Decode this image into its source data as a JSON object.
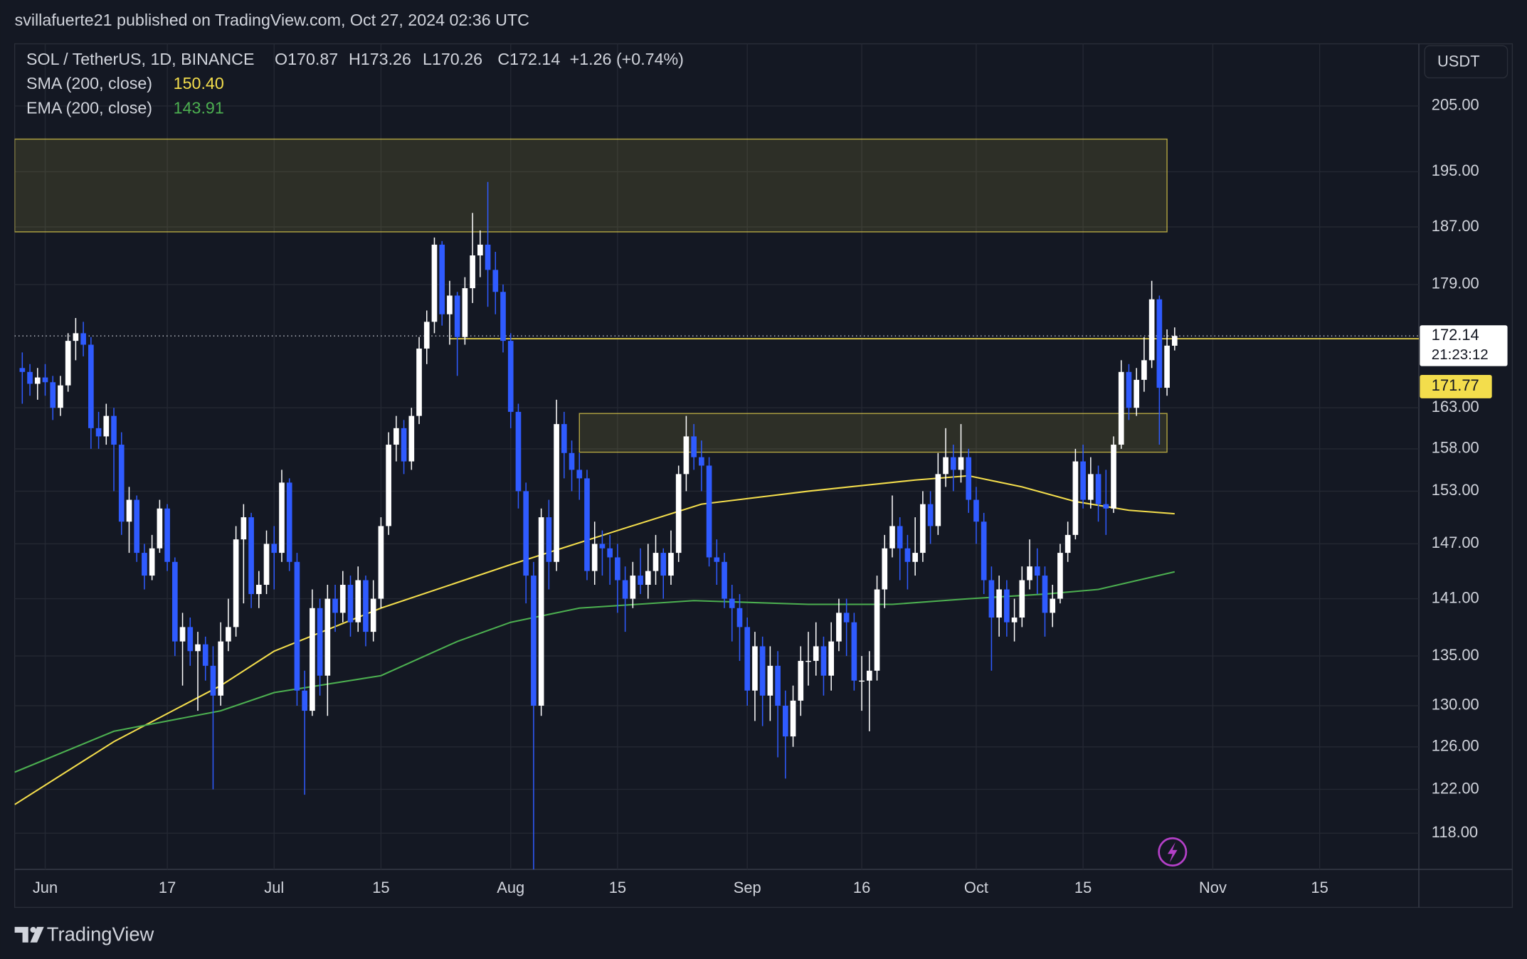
{
  "header": "svillafuerte21 published on TradingView.com, Oct 27, 2024 02:36 UTC",
  "footer": "TradingView",
  "chart_data": {
    "type": "candlestick",
    "symbol": "SOL / TetherUS, 1D, BINANCE",
    "ohlc_legend": [
      "O170.87",
      "H173.26",
      "L170.26",
      "C172.14",
      "+1.26 (+0.74%)"
    ],
    "currency": "USDT",
    "x": [
      "2024-05-29",
      "2024-05-30",
      "2024-05-31",
      "2024-06-01",
      "2024-06-02",
      "2024-06-03",
      "2024-06-04",
      "2024-06-05",
      "2024-06-06",
      "2024-06-07",
      "2024-06-08",
      "2024-06-09",
      "2024-06-10",
      "2024-06-11",
      "2024-06-12",
      "2024-06-13",
      "2024-06-14",
      "2024-06-15",
      "2024-06-16",
      "2024-06-17",
      "2024-06-18",
      "2024-06-19",
      "2024-06-20",
      "2024-06-21",
      "2024-06-22",
      "2024-06-23",
      "2024-06-24",
      "2024-06-25",
      "2024-06-26",
      "2024-06-27",
      "2024-06-28",
      "2024-06-29",
      "2024-06-30",
      "2024-07-01",
      "2024-07-02",
      "2024-07-03",
      "2024-07-04",
      "2024-07-05",
      "2024-07-06",
      "2024-07-07",
      "2024-07-08",
      "2024-07-09",
      "2024-07-10",
      "2024-07-11",
      "2024-07-12",
      "2024-07-13",
      "2024-07-14",
      "2024-07-15",
      "2024-07-16",
      "2024-07-17",
      "2024-07-18",
      "2024-07-19",
      "2024-07-20",
      "2024-07-21",
      "2024-07-22",
      "2024-07-23",
      "2024-07-24",
      "2024-07-25",
      "2024-07-26",
      "2024-07-27",
      "2024-07-28",
      "2024-07-29",
      "2024-07-30",
      "2024-07-31",
      "2024-08-01",
      "2024-08-02",
      "2024-08-03",
      "2024-08-04",
      "2024-08-05",
      "2024-08-06",
      "2024-08-07",
      "2024-08-08",
      "2024-08-09",
      "2024-08-10",
      "2024-08-11",
      "2024-08-12",
      "2024-08-13",
      "2024-08-14",
      "2024-08-15",
      "2024-08-16",
      "2024-08-17",
      "2024-08-18",
      "2024-08-19",
      "2024-08-20",
      "2024-08-21",
      "2024-08-22",
      "2024-08-23",
      "2024-08-24",
      "2024-08-25",
      "2024-08-26",
      "2024-08-27",
      "2024-08-28",
      "2024-08-29",
      "2024-08-30",
      "2024-08-31",
      "2024-09-01",
      "2024-09-02",
      "2024-09-03",
      "2024-09-04",
      "2024-09-05",
      "2024-09-06",
      "2024-09-07",
      "2024-09-08",
      "2024-09-09",
      "2024-09-10",
      "2024-09-11",
      "2024-09-12",
      "2024-09-13",
      "2024-09-14",
      "2024-09-15",
      "2024-09-16",
      "2024-09-17",
      "2024-09-18",
      "2024-09-19",
      "2024-09-20",
      "2024-09-21",
      "2024-09-22",
      "2024-09-23",
      "2024-09-24",
      "2024-09-25",
      "2024-09-26",
      "2024-09-27",
      "2024-09-28",
      "2024-09-29",
      "2024-09-30",
      "2024-10-01",
      "2024-10-02",
      "2024-10-03",
      "2024-10-04",
      "2024-10-05",
      "2024-10-06",
      "2024-10-07",
      "2024-10-08",
      "2024-10-09",
      "2024-10-10",
      "2024-10-11",
      "2024-10-12",
      "2024-10-13",
      "2024-10-14",
      "2024-10-15",
      "2024-10-16",
      "2024-10-17",
      "2024-10-18",
      "2024-10-19",
      "2024-10-20",
      "2024-10-21",
      "2024-10-22",
      "2024-10-23",
      "2024-10-24",
      "2024-10-25",
      "2024-10-26",
      "2024-10-27"
    ],
    "open": [
      168.0,
      167.5,
      166.0,
      166.8,
      166.2,
      163.0,
      165.8,
      171.5,
      172.5,
      171.0,
      160.5,
      159.5,
      162.0,
      158.5,
      149.5,
      152.0,
      146.0,
      143.5,
      146.5,
      151.0,
      145.0,
      136.5,
      138.0,
      135.5,
      136.2,
      134.0,
      131.0,
      136.5,
      138.0,
      147.5,
      150.0,
      141.5,
      142.5,
      147.0,
      146.0,
      154.0,
      145.0,
      131.5,
      129.5,
      140.0,
      133.0,
      141.0,
      139.5,
      142.5,
      138.5,
      143.0,
      137.5,
      141.0,
      149.0,
      158.5,
      160.5,
      156.5,
      162.0,
      170.5,
      174.0,
      184.5,
      175.0,
      177.5,
      172.0,
      178.5,
      183.0,
      184.5,
      181.0,
      178.0,
      171.5,
      162.5,
      153.0,
      143.5,
      130.0,
      150.0,
      145.0,
      161.0,
      157.5,
      155.5,
      154.5,
      144.0,
      147.0,
      146.5,
      145.5,
      143.0,
      141.0,
      143.5,
      142.5,
      144.0,
      146.0,
      143.5,
      146.0,
      155.0,
      159.5,
      157.0,
      156.0,
      145.5,
      145.0,
      141.0,
      140.0,
      138.0,
      131.5,
      136.0,
      131.0,
      134.0,
      130.0,
      127.0,
      130.5,
      134.5,
      134.5,
      136.0,
      133.0,
      136.5,
      139.5,
      138.5,
      132.5,
      132.5,
      133.5,
      142.0,
      146.5,
      149.0,
      146.5,
      145.0,
      146.0,
      151.5,
      149.0,
      155.0,
      157.0,
      155.5,
      157.0,
      152.0,
      149.5,
      143.0,
      139.0,
      142.0,
      138.5,
      139.0,
      143.0,
      144.5,
      143.5,
      139.5,
      141.0,
      146.0,
      148.0,
      156.5,
      152.0,
      155.0,
      151.5,
      151.0,
      158.5,
      167.5,
      163.0,
      166.5,
      169.0,
      177.0,
      165.5,
      170.87
    ],
    "high": [
      170.0,
      168.5,
      168.0,
      168.5,
      167.0,
      167.0,
      172.5,
      174.5,
      174.0,
      172.0,
      162.5,
      163.5,
      163.0,
      160.0,
      153.5,
      152.5,
      147.0,
      148.0,
      152.0,
      151.5,
      145.5,
      139.5,
      139.0,
      137.5,
      137.0,
      136.0,
      138.5,
      141.0,
      149.0,
      151.5,
      150.5,
      144.0,
      148.5,
      149.0,
      155.5,
      154.5,
      146.0,
      133.5,
      142.0,
      141.0,
      142.5,
      142.5,
      144.0,
      143.5,
      144.5,
      143.5,
      143.0,
      150.0,
      160.0,
      162.0,
      161.5,
      163.0,
      172.0,
      175.5,
      185.5,
      185.0,
      179.5,
      178.0,
      180.0,
      189.0,
      186.5,
      193.5,
      183.5,
      179.0,
      172.5,
      163.5,
      154.0,
      145.0,
      151.0,
      152.0,
      164.0,
      162.5,
      159.0,
      157.5,
      155.5,
      149.5,
      148.5,
      148.0,
      147.0,
      144.5,
      145.0,
      146.5,
      147.0,
      148.0,
      146.5,
      148.5,
      156.0,
      162.0,
      161.0,
      159.0,
      157.0,
      147.5,
      146.0,
      142.5,
      141.5,
      139.0,
      137.5,
      137.0,
      136.0,
      135.5,
      131.5,
      132.0,
      136.0,
      137.5,
      138.5,
      137.0,
      138.5,
      141.0,
      141.0,
      139.5,
      135.0,
      135.5,
      143.5,
      148.0,
      152.5,
      150.0,
      148.0,
      150.0,
      153.0,
      153.0,
      157.5,
      160.5,
      158.5,
      161.0,
      158.0,
      153.5,
      150.5,
      144.5,
      143.5,
      143.0,
      141.0,
      144.5,
      147.5,
      146.5,
      144.5,
      142.5,
      147.0,
      149.5,
      158.0,
      158.5,
      157.0,
      156.0,
      155.5,
      159.5,
      169.0,
      168.5,
      168.0,
      172.0,
      179.5,
      177.5,
      173.0,
      173.26
    ],
    "low": [
      163.5,
      164.5,
      164.0,
      164.5,
      161.5,
      162.0,
      165.0,
      169.0,
      169.5,
      158.0,
      158.0,
      158.5,
      153.0,
      148.0,
      146.0,
      145.0,
      142.0,
      143.0,
      146.0,
      144.0,
      135.0,
      132.0,
      134.0,
      129.5,
      132.5,
      122.0,
      130.0,
      135.5,
      137.0,
      140.5,
      140.0,
      140.0,
      141.5,
      142.0,
      145.0,
      144.0,
      130.0,
      121.5,
      129.0,
      131.0,
      129.0,
      137.5,
      138.5,
      137.0,
      137.5,
      136.0,
      136.5,
      140.0,
      148.0,
      156.5,
      155.0,
      155.5,
      161.0,
      168.5,
      172.5,
      173.5,
      171.0,
      167.0,
      171.0,
      176.5,
      180.0,
      176.0,
      175.0,
      170.0,
      160.5,
      151.0,
      140.5,
      110.0,
      129.0,
      142.0,
      144.0,
      154.5,
      153.0,
      152.0,
      143.0,
      142.5,
      143.5,
      142.5,
      139.5,
      137.5,
      140.0,
      141.5,
      141.0,
      142.5,
      141.0,
      142.5,
      145.0,
      153.0,
      155.5,
      153.0,
      144.5,
      142.5,
      140.0,
      136.5,
      134.5,
      130.0,
      128.5,
      128.0,
      128.5,
      125.0,
      123.0,
      126.0,
      129.0,
      132.0,
      133.0,
      131.0,
      131.5,
      135.5,
      135.0,
      131.5,
      129.5,
      127.5,
      132.5,
      140.0,
      145.5,
      143.0,
      142.0,
      143.5,
      145.0,
      147.0,
      148.0,
      153.5,
      153.0,
      154.0,
      150.5,
      147.0,
      141.5,
      133.5,
      137.0,
      137.0,
      136.5,
      138.0,
      142.0,
      141.5,
      137.0,
      138.0,
      140.5,
      145.0,
      147.5,
      151.0,
      151.0,
      149.5,
      148.0,
      150.5,
      158.0,
      161.5,
      162.0,
      165.0,
      168.0,
      158.5,
      164.5,
      170.26
    ],
    "close": [
      167.5,
      166.0,
      166.8,
      166.2,
      163.0,
      165.8,
      171.5,
      172.5,
      171.0,
      160.5,
      159.5,
      162.0,
      158.5,
      149.5,
      152.0,
      146.0,
      143.5,
      146.5,
      151.0,
      145.0,
      136.5,
      138.0,
      135.5,
      136.2,
      134.0,
      131.0,
      136.5,
      138.0,
      147.5,
      150.0,
      141.5,
      142.5,
      147.0,
      146.0,
      154.0,
      145.0,
      131.5,
      129.5,
      140.0,
      133.0,
      141.0,
      139.5,
      142.5,
      138.5,
      143.0,
      137.5,
      141.0,
      149.0,
      158.5,
      160.5,
      156.5,
      162.0,
      170.5,
      174.0,
      184.5,
      175.0,
      177.5,
      172.0,
      178.5,
      183.0,
      184.5,
      181.0,
      178.0,
      171.5,
      162.5,
      153.0,
      143.5,
      130.0,
      150.0,
      145.0,
      161.0,
      157.5,
      155.5,
      154.5,
      144.0,
      147.0,
      146.5,
      145.5,
      143.0,
      141.0,
      143.5,
      142.5,
      144.0,
      146.0,
      143.5,
      146.0,
      155.0,
      159.5,
      157.0,
      156.0,
      145.5,
      145.0,
      141.0,
      140.0,
      138.0,
      131.5,
      136.0,
      131.0,
      134.0,
      130.0,
      127.0,
      130.5,
      134.5,
      134.5,
      136.0,
      133.0,
      136.5,
      139.5,
      138.5,
      132.5,
      132.5,
      133.5,
      142.0,
      146.5,
      149.0,
      146.5,
      145.0,
      146.0,
      151.5,
      149.0,
      155.0,
      157.0,
      155.5,
      157.0,
      152.0,
      149.5,
      143.0,
      139.0,
      142.0,
      138.5,
      139.0,
      143.0,
      144.5,
      143.5,
      139.5,
      141.0,
      146.0,
      148.0,
      156.5,
      152.0,
      155.0,
      151.5,
      151.0,
      158.5,
      167.5,
      163.0,
      166.5,
      169.0,
      177.0,
      165.5,
      170.88,
      172.14
    ],
    "up_color": "#ffffff",
    "down_color": "#2f5bff",
    "indicators": [
      {
        "name": "SMA (200, close)",
        "value_label": "150.40",
        "color": "#f3dd4c",
        "x": [
          "2024-05-28",
          "2024-06-10",
          "2024-06-24",
          "2024-07-01",
          "2024-07-15",
          "2024-08-01",
          "2024-08-15",
          "2024-08-26",
          "2024-09-09",
          "2024-09-23",
          "2024-09-30",
          "2024-10-07",
          "2024-10-14",
          "2024-10-21",
          "2024-10-27"
        ],
        "values": [
          120.6,
          126.5,
          132.0,
          135.5,
          140.0,
          144.7,
          148.5,
          151.5,
          153.0,
          154.3,
          154.8,
          153.5,
          151.8,
          150.8,
          150.4
        ]
      },
      {
        "name": "EMA (200, close)",
        "value_label": "143.91",
        "color": "#4caf50",
        "x": [
          "2024-05-28",
          "2024-06-10",
          "2024-06-24",
          "2024-07-01",
          "2024-07-15",
          "2024-07-25",
          "2024-08-01",
          "2024-08-10",
          "2024-08-25",
          "2024-09-09",
          "2024-09-20",
          "2024-09-30",
          "2024-10-10",
          "2024-10-17",
          "2024-10-27"
        ],
        "values": [
          123.6,
          127.5,
          129.5,
          131.3,
          133.0,
          136.5,
          138.5,
          140.0,
          140.8,
          140.4,
          140.4,
          141.0,
          141.5,
          142.0,
          143.91
        ]
      }
    ],
    "zones": [
      {
        "top": 199.9,
        "bottom": 186.3,
        "start": "2024-05-28",
        "end": "2024-10-26",
        "color": "#e8d44d"
      },
      {
        "top": 162.3,
        "bottom": 157.6,
        "start": "2024-08-10",
        "end": "2024-10-26",
        "color": "#e8d44d"
      }
    ],
    "level": {
      "value": 171.77,
      "label": "171.77",
      "start": "2024-07-24",
      "color": "#f3dd4c"
    },
    "last_price": {
      "value": 172.14,
      "label": "172.14",
      "countdown": "21:23:12"
    },
    "xlim": [
      "2024-05-28",
      "2024-11-28"
    ],
    "ylim": [
      114.8,
      214.9
    ],
    "log_scale": true,
    "grid": true,
    "xticks": [
      {
        "value": "2024-06-01",
        "label": "Jun"
      },
      {
        "value": "2024-06-17",
        "label": "17"
      },
      {
        "value": "2024-07-01",
        "label": "Jul"
      },
      {
        "value": "2024-07-15",
        "label": "15"
      },
      {
        "value": "2024-08-01",
        "label": "Aug"
      },
      {
        "value": "2024-08-15",
        "label": "15"
      },
      {
        "value": "2024-09-01",
        "label": "Sep"
      },
      {
        "value": "2024-09-16",
        "label": "16"
      },
      {
        "value": "2024-10-01",
        "label": "Oct"
      },
      {
        "value": "2024-10-15",
        "label": "15"
      },
      {
        "value": "2024-11-01",
        "label": "Nov"
      },
      {
        "value": "2024-11-15",
        "label": "15"
      }
    ],
    "yticks": [
      {
        "value": 205,
        "label": "205.00"
      },
      {
        "value": 195,
        "label": "195.00"
      },
      {
        "value": 187,
        "label": "187.00"
      },
      {
        "value": 179,
        "label": "179.00"
      },
      {
        "value": 163,
        "label": "163.00"
      },
      {
        "value": 158,
        "label": "158.00"
      },
      {
        "value": 153,
        "label": "153.00"
      },
      {
        "value": 147,
        "label": "147.00"
      },
      {
        "value": 141,
        "label": "141.00"
      },
      {
        "value": 135,
        "label": "135.00"
      },
      {
        "value": 130,
        "label": "130.00"
      },
      {
        "value": 126,
        "label": "126.00"
      },
      {
        "value": 122,
        "label": "122.00"
      },
      {
        "value": 118,
        "label": "118.00"
      }
    ]
  }
}
